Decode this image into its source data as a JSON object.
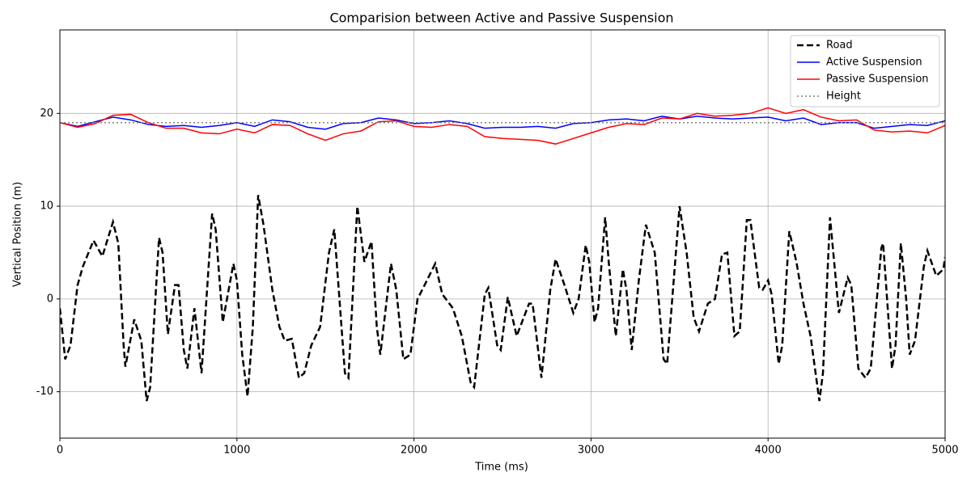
{
  "chart_data": {
    "type": "line",
    "title": "Comparision between Active and Passive Suspension",
    "xlabel": "Time (ms)",
    "ylabel": "Vertical Position (m)",
    "xlim": [
      0,
      5000
    ],
    "ylim": [
      -15,
      29
    ],
    "xticks": [
      0,
      1000,
      2000,
      3000,
      4000,
      5000
    ],
    "yticks": [
      -10,
      0,
      10,
      20
    ],
    "grid": true,
    "legend": "upper right",
    "series": [
      {
        "name": "Road",
        "color": "#000000",
        "linestyle": "dashed",
        "x": [
          0,
          30,
          60,
          100,
          130,
          190,
          240,
          300,
          330,
          360,
          370,
          420,
          460,
          490,
          510,
          560,
          580,
          610,
          650,
          670,
          700,
          720,
          760,
          800,
          860,
          880,
          920,
          980,
          1000,
          1030,
          1060,
          1090,
          1120,
          1150,
          1200,
          1240,
          1270,
          1310,
          1350,
          1380,
          1420,
          1470,
          1520,
          1550,
          1610,
          1630,
          1680,
          1720,
          1760,
          1790,
          1810,
          1870,
          1900,
          1940,
          1980,
          2020,
          2060,
          2120,
          2160,
          2220,
          2270,
          2320,
          2340,
          2400,
          2420,
          2470,
          2490,
          2530,
          2580,
          2650,
          2670,
          2720,
          2770,
          2800,
          2850,
          2900,
          2930,
          2970,
          2990,
          3020,
          3040,
          3080,
          3100,
          3140,
          3180,
          3200,
          3230,
          3270,
          3310,
          3360,
          3410,
          3430,
          3500,
          3540,
          3580,
          3610,
          3660,
          3700,
          3740,
          3770,
          3810,
          3840,
          3880,
          3900,
          3950,
          3970,
          4000,
          4020,
          4060,
          4080,
          4120,
          4160,
          4200,
          4240,
          4290,
          4310,
          4350,
          4400,
          4450,
          4470,
          4510,
          4550,
          4580,
          4640,
          4650,
          4700,
          4720,
          4750,
          4780,
          4800,
          4830,
          4880,
          4900,
          4950,
          4990,
          5000
        ],
        "values": [
          -1,
          -6.5,
          -5,
          1.5,
          3.5,
          6.3,
          4.6,
          8.3,
          6,
          -5,
          -7.3,
          -2.2,
          -4.5,
          -11,
          -9.5,
          6.6,
          5,
          -3.8,
          1.5,
          1.5,
          -5.5,
          -7.5,
          -1,
          -8,
          9.2,
          7.5,
          -2.5,
          3.8,
          2,
          -6,
          -10.5,
          -3,
          11.2,
          8,
          1,
          -3,
          -4.5,
          -4.3,
          -8.5,
          -8,
          -5,
          -3,
          5,
          7.5,
          -8,
          -8.5,
          10,
          4,
          6.2,
          -3,
          -6,
          3.8,
          1,
          -6.5,
          -6,
          0,
          1.5,
          3.8,
          0.5,
          -1,
          -4,
          -9,
          -9.5,
          0.5,
          1.2,
          -5,
          -5.5,
          0.2,
          -4,
          -0.5,
          -0.5,
          -8.5,
          1,
          4.3,
          1.5,
          -1.5,
          0,
          5.8,
          4,
          -2.5,
          -1,
          8.8,
          4,
          -4,
          3.2,
          1,
          -5.5,
          2,
          8,
          5,
          -6.5,
          -7,
          10,
          5,
          -2,
          -3.5,
          -0.5,
          0,
          4.8,
          5,
          -4,
          -3.5,
          8.5,
          8.5,
          1.2,
          1,
          2,
          0.5,
          -7,
          -5,
          7.3,
          4,
          -0.5,
          -4,
          -11,
          -8,
          8.8,
          -1.5,
          2.3,
          1.5,
          -7.5,
          -8.5,
          -7.5,
          5.5,
          6,
          -7.5,
          -5,
          6,
          0,
          -6,
          -4.5,
          3.5,
          5.2,
          2.5,
          3.2,
          4.5
        ]
      },
      {
        "name": "Active Suspension",
        "color": "#0000ff",
        "linestyle": "solid",
        "x": [
          0,
          100,
          200,
          300,
          400,
          500,
          600,
          700,
          800,
          900,
          1000,
          1100,
          1200,
          1300,
          1400,
          1500,
          1600,
          1700,
          1800,
          1900,
          2000,
          2100,
          2200,
          2300,
          2400,
          2500,
          2600,
          2700,
          2800,
          2900,
          3000,
          3100,
          3200,
          3300,
          3400,
          3500,
          3600,
          3700,
          3800,
          3900,
          4000,
          4100,
          4200,
          4300,
          4400,
          4500,
          4600,
          4700,
          4800,
          4900,
          5000
        ],
        "values": [
          19,
          18.6,
          19.1,
          19.6,
          19.3,
          18.8,
          18.6,
          18.7,
          18.5,
          18.7,
          19.0,
          18.6,
          19.3,
          19.1,
          18.5,
          18.3,
          18.9,
          19.0,
          19.5,
          19.3,
          18.9,
          19.0,
          19.2,
          18.9,
          18.4,
          18.5,
          18.5,
          18.6,
          18.4,
          18.9,
          19.0,
          19.3,
          19.4,
          19.2,
          19.7,
          19.4,
          19.7,
          19.5,
          19.4,
          19.5,
          19.6,
          19.2,
          19.5,
          18.8,
          19.0,
          19.0,
          18.4,
          18.6,
          18.8,
          18.7,
          19.2
        ]
      },
      {
        "name": "Passive Suspension",
        "color": "#ff0000",
        "linestyle": "solid",
        "x": [
          0,
          100,
          200,
          300,
          400,
          500,
          600,
          700,
          800,
          900,
          1000,
          1100,
          1200,
          1300,
          1400,
          1500,
          1600,
          1700,
          1800,
          1900,
          2000,
          2100,
          2200,
          2300,
          2400,
          2500,
          2600,
          2700,
          2800,
          2900,
          3000,
          3100,
          3200,
          3300,
          3400,
          3500,
          3600,
          3700,
          3800,
          3900,
          4000,
          4100,
          4200,
          4300,
          4400,
          4500,
          4600,
          4700,
          4800,
          4900,
          5000
        ],
        "values": [
          19,
          18.5,
          18.9,
          19.8,
          19.9,
          19.0,
          18.4,
          18.4,
          17.9,
          17.8,
          18.3,
          17.9,
          18.8,
          18.7,
          17.8,
          17.1,
          17.8,
          18.1,
          19.1,
          19.2,
          18.6,
          18.5,
          18.8,
          18.6,
          17.5,
          17.3,
          17.2,
          17.1,
          16.7,
          17.3,
          17.9,
          18.5,
          18.9,
          18.8,
          19.5,
          19.4,
          20.0,
          19.7,
          19.8,
          20.0,
          20.6,
          20.0,
          20.4,
          19.6,
          19.2,
          19.3,
          18.2,
          18.0,
          18.1,
          17.9,
          18.7
        ]
      },
      {
        "name": "Height",
        "color": "#808080",
        "linestyle": "dotted",
        "x": [
          0,
          5000
        ],
        "values": [
          19,
          19
        ]
      }
    ]
  }
}
